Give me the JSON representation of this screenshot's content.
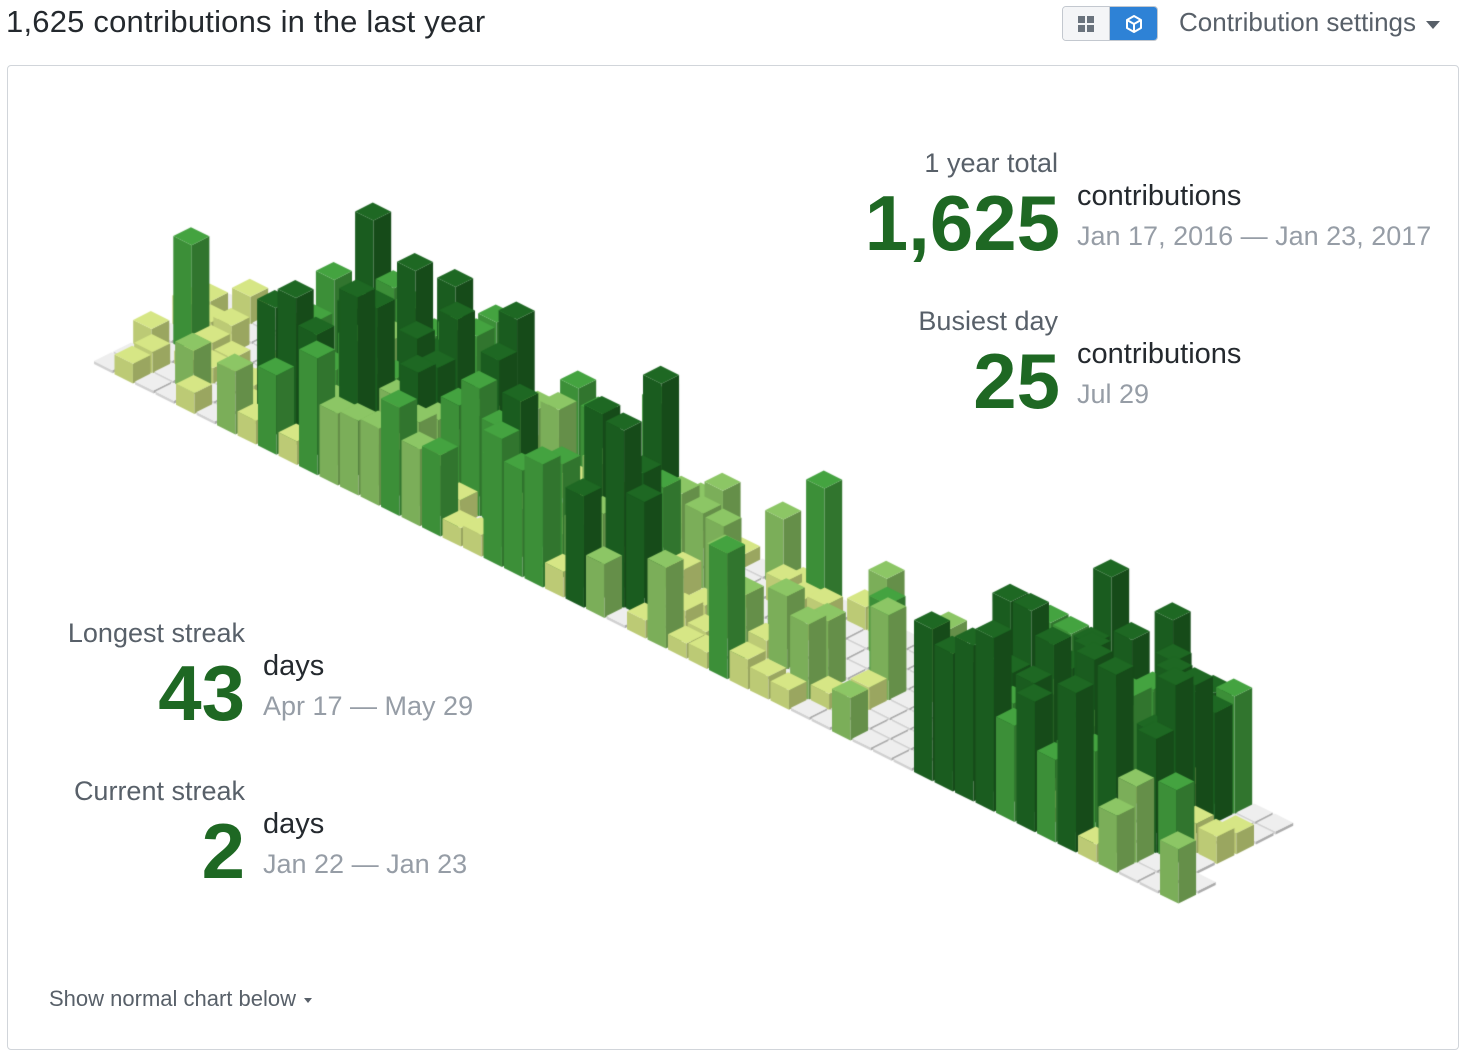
{
  "header": {
    "title": "1,625 contributions in the last year",
    "settings_label": "Contribution settings"
  },
  "view_toggle": {
    "options": [
      "grid-view",
      "isometric-view"
    ],
    "selected": "isometric-view"
  },
  "colors": {
    "level_0": "#eeeeee",
    "level_1": "#d6e685",
    "level_2": "#8cc665",
    "level_3": "#44a340",
    "level_4": "#1e6823",
    "accent": "#1e6823",
    "toggle_active": "#2e82d6"
  },
  "stats": {
    "year_total": {
      "label": "1 year total",
      "value": "1,625",
      "unit": "contributions",
      "range": "Jan 17, 2016 — Jan 23, 2017"
    },
    "busiest_day": {
      "label": "Busiest day",
      "value": "25",
      "unit": "contributions",
      "range": "Jul 29"
    },
    "longest_streak": {
      "label": "Longest streak",
      "value": "43",
      "unit": "days",
      "range": "Apr 17 — May 29"
    },
    "current_streak": {
      "label": "Current streak",
      "value": "2",
      "unit": "days",
      "range": "Jan 22 — Jan 23"
    }
  },
  "footer": {
    "show_normal_label": "Show normal chart below"
  }
}
